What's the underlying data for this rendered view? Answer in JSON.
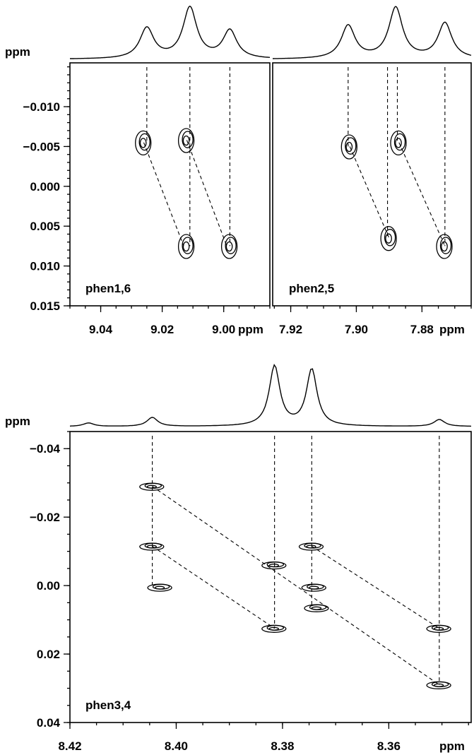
{
  "chart_data": [
    {
      "type": "nmr-2d-contour",
      "panel_label": "phen1,6",
      "x_unit": "ppm",
      "y_unit": "ppm",
      "xlim": [
        9.05,
        8.985
      ],
      "ylim": [
        -0.0155,
        0.015
      ],
      "x_ticks": [
        9.04,
        9.02,
        9.0
      ],
      "x_tick_labels": [
        "9.04",
        "9.02",
        "9.00"
      ],
      "y_ticks": [
        -0.01,
        -0.005,
        0.0,
        0.005,
        0.01,
        0.015
      ],
      "y_tick_labels": [
        "−0.010",
        "−0.005",
        "0.000",
        "0.005",
        "0.010",
        "0.015"
      ],
      "projection_peaks": [
        {
          "x": 9.025,
          "height": 0.6
        },
        {
          "x": 9.011,
          "height": 1.0
        },
        {
          "x": 8.998,
          "height": 0.55
        }
      ],
      "cross_peaks": [
        {
          "x": 9.026,
          "y": -0.0055
        },
        {
          "x": 9.012,
          "y": -0.0058
        },
        {
          "x": 9.012,
          "y": 0.0075
        },
        {
          "x": 8.998,
          "y": 0.0075
        }
      ],
      "connectors": [
        {
          "x1": 9.026,
          "y1": -0.0055,
          "x2": 9.013,
          "y2": 0.0075
        },
        {
          "x1": 9.012,
          "y1": -0.0058,
          "x2": 8.999,
          "y2": 0.0075
        }
      ],
      "vertical_guides": [
        9.025,
        9.011,
        8.998
      ]
    },
    {
      "type": "nmr-2d-contour",
      "panel_label": "phen2,5",
      "x_unit": "ppm",
      "xlim": [
        7.9255,
        7.865
      ],
      "ylim": [
        -0.0155,
        0.015
      ],
      "x_ticks": [
        7.92,
        7.9,
        7.88
      ],
      "x_tick_labels": [
        "7.92",
        "7.90",
        "7.88"
      ],
      "projection_peaks": [
        {
          "x": 7.9025,
          "height": 0.65
        },
        {
          "x": 7.888,
          "height": 1.0
        },
        {
          "x": 7.873,
          "height": 0.7
        }
      ],
      "cross_peaks": [
        {
          "x": 7.902,
          "y": -0.005
        },
        {
          "x": 7.887,
          "y": -0.0055
        },
        {
          "x": 7.89,
          "y": 0.0065
        },
        {
          "x": 7.873,
          "y": 0.0075
        }
      ],
      "connectors": [
        {
          "x1": 7.902,
          "y1": -0.005,
          "x2": 7.89,
          "y2": 0.0065
        },
        {
          "x1": 7.887,
          "y1": -0.0055,
          "x2": 7.873,
          "y2": 0.0075
        }
      ],
      "vertical_guides": [
        7.9025,
        7.8905,
        7.8875,
        7.873
      ]
    },
    {
      "type": "nmr-2d-contour",
      "panel_label": "phen3,4",
      "x_unit": "ppm",
      "y_unit": "ppm",
      "xlim": [
        8.42,
        8.3445
      ],
      "ylim": [
        -0.045,
        0.04
      ],
      "x_ticks": [
        8.42,
        8.4,
        8.38,
        8.36
      ],
      "x_tick_labels": [
        "8.42",
        "8.40",
        "8.38",
        "8.36"
      ],
      "y_ticks": [
        -0.04,
        -0.02,
        0.0,
        0.02,
        0.04
      ],
      "y_tick_labels": [
        "−0.04",
        "−0.02",
        "0.00",
        "0.02",
        "0.04"
      ],
      "projection_peaks": [
        {
          "x": 8.4165,
          "height": 0.05
        },
        {
          "x": 8.4045,
          "height": 0.13
        },
        {
          "x": 8.3815,
          "height": 0.87
        },
        {
          "x": 8.3745,
          "height": 0.82
        },
        {
          "x": 8.3505,
          "height": 0.1
        }
      ],
      "cross_peaks": [
        {
          "x": 8.4045,
          "y": -0.029
        },
        {
          "x": 8.4045,
          "y": -0.0115
        },
        {
          "x": 8.403,
          "y": 0.0005
        },
        {
          "x": 8.3815,
          "y": -0.006
        },
        {
          "x": 8.3815,
          "y": 0.0125
        },
        {
          "x": 8.3745,
          "y": -0.0115
        },
        {
          "x": 8.374,
          "y": 0.0005
        },
        {
          "x": 8.3735,
          "y": 0.0065
        },
        {
          "x": 8.3505,
          "y": 0.0125
        },
        {
          "x": 8.3505,
          "y": 0.029
        }
      ],
      "connectors": [
        {
          "x1": 8.4045,
          "y1": -0.029,
          "x2": 8.3505,
          "y2": 0.029
        },
        {
          "x1": 8.4045,
          "y1": -0.0115,
          "x2": 8.3815,
          "y2": 0.0125
        },
        {
          "x1": 8.3745,
          "y1": -0.0115,
          "x2": 8.3505,
          "y2": 0.0125
        }
      ],
      "vertical_guides": [
        8.4045,
        8.3815,
        8.3745,
        8.3505
      ]
    }
  ]
}
